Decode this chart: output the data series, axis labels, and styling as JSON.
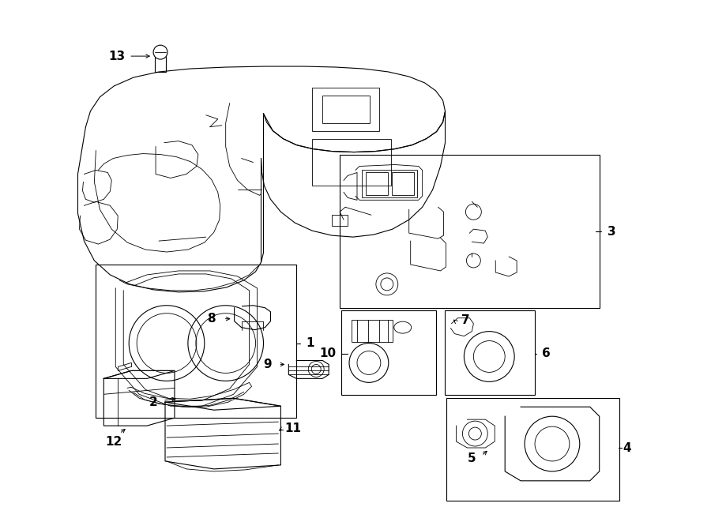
{
  "bg_color": "#ffffff",
  "line_color": "#000000",
  "fig_width": 9.0,
  "fig_height": 6.61,
  "dpi": 100,
  "lw_main": 1.0,
  "lw_thin": 0.6,
  "lw_med": 0.8,
  "font_label": 11,
  "font_title": 9
}
